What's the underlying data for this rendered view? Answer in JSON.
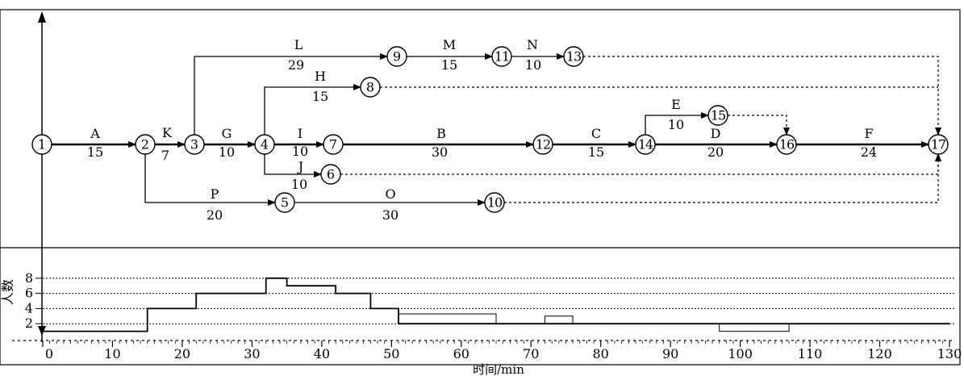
{
  "nodes": [
    "1",
    "2",
    "3",
    "4",
    "5",
    "6",
    "7",
    "8",
    "9",
    "10",
    "11",
    "12",
    "13",
    "14",
    "15",
    "16",
    "17"
  ],
  "activities": [
    {
      "from": "1",
      "to": "2",
      "name": "A",
      "duration": "15"
    },
    {
      "from": "2",
      "to": "3",
      "name": "K",
      "duration": "7"
    },
    {
      "from": "3",
      "to": "4",
      "name": "G",
      "duration": "10"
    },
    {
      "from": "3",
      "to": "9",
      "name": "L",
      "duration": "29"
    },
    {
      "from": "4",
      "to": "7",
      "name": "I",
      "duration": "10"
    },
    {
      "from": "4",
      "to": "8",
      "name": "H",
      "duration": "15"
    },
    {
      "from": "4",
      "to": "6",
      "name": "J",
      "duration": "10"
    },
    {
      "from": "9",
      "to": "11",
      "name": "M",
      "duration": "15"
    },
    {
      "from": "11",
      "to": "13",
      "name": "N",
      "duration": "10"
    },
    {
      "from": "7",
      "to": "12",
      "name": "B",
      "duration": "30"
    },
    {
      "from": "12",
      "to": "14",
      "name": "C",
      "duration": "15"
    },
    {
      "from": "14",
      "to": "15",
      "name": "E",
      "duration": "10"
    },
    {
      "from": "14",
      "to": "16",
      "name": "D",
      "duration": "20"
    },
    {
      "from": "16",
      "to": "17",
      "name": "F",
      "duration": "24"
    },
    {
      "from": "2",
      "to": "5",
      "name": "P",
      "duration": "20"
    },
    {
      "from": "5",
      "to": "10",
      "name": "O",
      "duration": "30"
    }
  ],
  "dummy_links": [
    {
      "from": "13",
      "to": "17"
    },
    {
      "from": "8",
      "to": "17"
    },
    {
      "from": "15",
      "to": "16"
    },
    {
      "from": "6",
      "to": "17"
    },
    {
      "from": "10",
      "to": "17"
    }
  ],
  "axis": {
    "xlabel": "时间/min",
    "ylabel": "人数",
    "x_ticks": [
      "0",
      "10",
      "20",
      "30",
      "40",
      "50",
      "60",
      "70",
      "80",
      "90",
      "100",
      "110",
      "120",
      "130"
    ],
    "y_ticks": [
      "2",
      "4",
      "6",
      "8"
    ],
    "x_range": [
      0,
      130
    ],
    "y_range": [
      0,
      8
    ]
  },
  "resource_profile": {
    "thick": [
      [
        0,
        1
      ],
      [
        15,
        1
      ],
      [
        15,
        4
      ],
      [
        22,
        4
      ],
      [
        22,
        6
      ],
      [
        32,
        6
      ],
      [
        32,
        8
      ],
      [
        35,
        8
      ],
      [
        35,
        7
      ],
      [
        42,
        7
      ],
      [
        42,
        6
      ],
      [
        47,
        6
      ],
      [
        47,
        4
      ],
      [
        51,
        4
      ],
      [
        51,
        2
      ],
      [
        130,
        2
      ]
    ],
    "thin": [
      [
        51,
        3.3
      ],
      [
        65,
        3.3
      ],
      [
        65,
        2
      ],
      [
        72,
        2
      ],
      [
        72,
        3
      ],
      [
        76,
        3
      ],
      [
        76,
        2
      ],
      [
        97,
        2
      ],
      [
        97,
        1
      ],
      [
        107,
        1
      ],
      [
        107,
        2
      ],
      [
        130,
        2
      ]
    ]
  }
}
